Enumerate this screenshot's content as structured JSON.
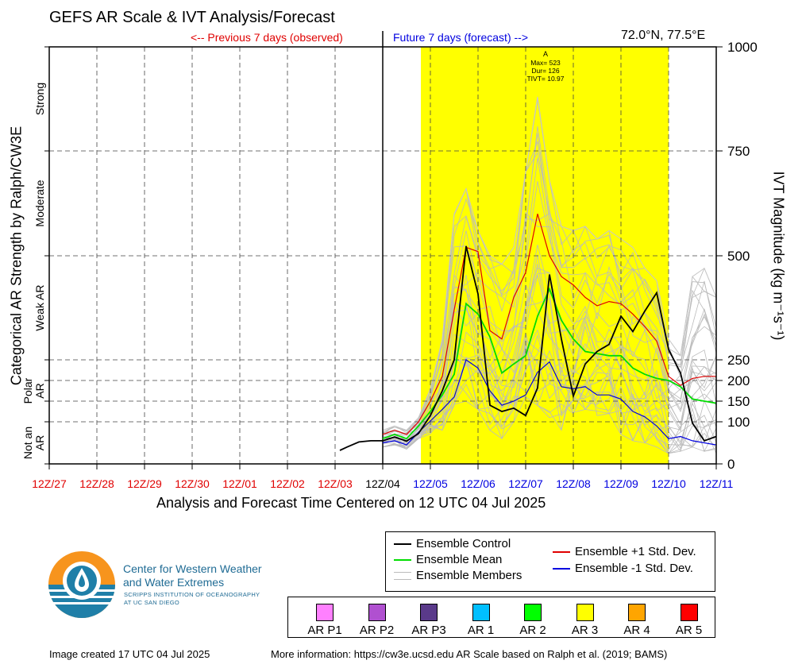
{
  "title": "GEFS AR Scale & IVT Analysis/Forecast",
  "prev_label": "<-- Previous 7 days (observed)",
  "future_label": "Future 7 days (forecast) -->",
  "coords": "72.0°N, 77.5°E",
  "xaxis_title": "Analysis and Forecast Time Centered on 12 UTC 04 Jul 2025",
  "yleft_title": "Categorical AR Strength by Ralph/CW3E",
  "yright_title": "IVT Magnitude (kg m⁻¹s⁻¹)",
  "legend": {
    "control": "Ensemble Control",
    "mean": "Ensemble Mean",
    "members": "Ensemble Members",
    "plus": "Ensemble +1 Std. Dev.",
    "minus": "Ensemble -1 Std. Dev."
  },
  "ar_scale": [
    {
      "label": "AR P1",
      "color": "#ff80ff"
    },
    {
      "label": "AR P2",
      "color": "#b050d0"
    },
    {
      "label": "AR P3",
      "color": "#5a3a8a"
    },
    {
      "label": "AR 1",
      "color": "#00bfff"
    },
    {
      "label": "AR 2",
      "color": "#00ff00"
    },
    {
      "label": "AR 3",
      "color": "#ffff00"
    },
    {
      "label": "AR 4",
      "color": "#ffa500"
    },
    {
      "label": "AR 5",
      "color": "#ff0000"
    }
  ],
  "footer_created": "Image created 17 UTC 04 Jul 2025",
  "footer_info": "More information: https://cw3e.ucsd.edu AR Scale based on Ralph et al. (2019; BAMS)",
  "org": {
    "name_line1": "Center for Western Weather",
    "name_line2": "and Water Extremes",
    "sub_line1": "SCRIPPS INSTITUTION OF OCEANOGRAPHY",
    "sub_line2": "AT UC SAN DIEGO"
  },
  "chart_data": {
    "type": "line",
    "x_ticks": [
      {
        "label": "12Z/27",
        "color": "#e00000"
      },
      {
        "label": "12Z/28",
        "color": "#e00000"
      },
      {
        "label": "12Z/29",
        "color": "#e00000"
      },
      {
        "label": "12Z/30",
        "color": "#e00000"
      },
      {
        "label": "12Z/01",
        "color": "#e00000"
      },
      {
        "label": "12Z/02",
        "color": "#e00000"
      },
      {
        "label": "12Z/03",
        "color": "#e00000"
      },
      {
        "label": "12Z/04",
        "color": "#000000"
      },
      {
        "label": "12Z/05",
        "color": "#0000e0"
      },
      {
        "label": "12Z/06",
        "color": "#0000e0"
      },
      {
        "label": "12Z/07",
        "color": "#0000e0"
      },
      {
        "label": "12Z/08",
        "color": "#0000e0"
      },
      {
        "label": "12Z/09",
        "color": "#0000e0"
      },
      {
        "label": "12Z/10",
        "color": "#0000e0"
      },
      {
        "label": "12Z/11",
        "color": "#0000e0"
      }
    ],
    "x_range_days": [
      -7,
      7
    ],
    "y_ticks": [
      "0",
      "100",
      "150",
      "200",
      "250",
      "500",
      "750",
      "1000"
    ],
    "y_levels": [
      0,
      100,
      150,
      200,
      250,
      500,
      750,
      1000
    ],
    "ylim": [
      0,
      1000
    ],
    "y_scale": "piecewise (0-250 expanded, 250-1000 compressed)",
    "categories_left": [
      {
        "label": "Not an AR",
        "lo": 0,
        "hi": 100
      },
      {
        "label": "Polar AR",
        "lo": 100,
        "hi": 250
      },
      {
        "label": "Weak AR",
        "lo": 250,
        "hi": 500
      },
      {
        "label": "Moderate",
        "lo": 500,
        "hi": 750
      },
      {
        "label": "Strong",
        "lo": 750,
        "hi": 1000
      }
    ],
    "ar_event": {
      "start_day": 0.8,
      "end_day": 6.0,
      "color": "#ffff00",
      "label": "A",
      "stats": [
        "Max= 523",
        "Dur= 126",
        "TIVT= 10.97"
      ]
    },
    "control": {
      "name": "Ensemble Control",
      "color": "#000000",
      "days": [
        -0.9,
        -0.75,
        -0.5,
        -0.25,
        0,
        0.25,
        0.5,
        0.75,
        1.0,
        1.25,
        1.5,
        1.75,
        2.0,
        2.25,
        2.5,
        2.75,
        3.0,
        3.25,
        3.5,
        3.75,
        4.0,
        4.25,
        4.5,
        4.75,
        5.0,
        5.25,
        5.5,
        5.75,
        6.0,
        6.25,
        6.5,
        6.75,
        7.0
      ],
      "values": [
        32,
        40,
        52,
        55,
        55,
        64,
        54,
        72,
        115,
        175,
        250,
        523,
        408,
        140,
        125,
        133,
        115,
        182,
        455,
        300,
        162,
        240,
        270,
        287,
        355,
        318,
        367,
        411,
        275,
        218,
        97,
        55,
        65
      ]
    },
    "mean": {
      "name": "Ensemble Mean",
      "color": "#00dd00",
      "days": [
        0,
        0.25,
        0.5,
        0.75,
        1.0,
        1.25,
        1.5,
        1.75,
        2.0,
        2.25,
        2.5,
        2.75,
        3.0,
        3.25,
        3.5,
        3.75,
        4.0,
        4.25,
        4.5,
        4.75,
        5.0,
        5.25,
        5.5,
        5.75,
        6.0,
        6.25,
        6.5,
        6.75,
        7.0
      ],
      "values": [
        60,
        70,
        60,
        90,
        125,
        165,
        215,
        385,
        360,
        305,
        218,
        240,
        260,
        355,
        420,
        345,
        300,
        270,
        265,
        260,
        260,
        230,
        215,
        205,
        200,
        185,
        155,
        150,
        145
      ]
    },
    "plus_std": {
      "name": "Ensemble +1 Std. Dev.",
      "color": "#e00000",
      "days": [
        0,
        0.25,
        0.5,
        0.75,
        1.0,
        1.25,
        1.5,
        1.75,
        2.0,
        2.25,
        2.5,
        2.75,
        3.0,
        3.25,
        3.5,
        3.75,
        4.0,
        4.25,
        4.5,
        4.75,
        5.0,
        5.25,
        5.5,
        5.75,
        6.0,
        6.25,
        6.5,
        6.75,
        7.0
      ],
      "values": [
        70,
        80,
        70,
        100,
        150,
        210,
        370,
        520,
        510,
        320,
        300,
        400,
        460,
        600,
        500,
        450,
        430,
        400,
        380,
        390,
        385,
        360,
        330,
        295,
        210,
        188,
        205,
        210,
        210
      ]
    },
    "minus_std": {
      "name": "Ensemble -1 Std. Dev.",
      "color": "#0000e0",
      "days": [
        0,
        0.25,
        0.5,
        0.75,
        1.0,
        1.25,
        1.5,
        1.75,
        2.0,
        2.25,
        2.5,
        2.75,
        3.0,
        3.25,
        3.5,
        3.75,
        4.0,
        4.25,
        4.5,
        4.75,
        5.0,
        5.25,
        5.5,
        5.75,
        6.0,
        6.25,
        6.5,
        6.75,
        7.0
      ],
      "values": [
        50,
        55,
        45,
        75,
        102,
        130,
        160,
        250,
        230,
        175,
        140,
        150,
        165,
        220,
        245,
        185,
        180,
        185,
        165,
        165,
        155,
        125,
        112,
        90,
        60,
        65,
        55,
        50,
        45
      ]
    },
    "members_envelope": {
      "name": "Ensemble Members",
      "color": "#bbbbbb",
      "days": [
        0,
        0.25,
        0.5,
        0.75,
        1.0,
        1.25,
        1.5,
        1.75,
        2.0,
        2.25,
        2.5,
        2.75,
        3.0,
        3.25,
        3.5,
        3.75,
        4.0,
        4.25,
        4.5,
        4.75,
        5.0,
        5.25,
        5.5,
        5.75,
        6.0,
        6.25,
        6.5,
        6.75,
        7.0
      ],
      "max": [
        80,
        90,
        80,
        110,
        180,
        300,
        600,
        660,
        560,
        500,
        480,
        520,
        700,
        880,
        680,
        570,
        560,
        570,
        540,
        560,
        540,
        520,
        470,
        440,
        300,
        260,
        450,
        470,
        400
      ],
      "min": [
        40,
        45,
        35,
        60,
        70,
        80,
        140,
        150,
        130,
        80,
        60,
        100,
        160,
        140,
        110,
        80,
        120,
        130,
        115,
        120,
        70,
        55,
        50,
        40,
        25,
        30,
        40,
        30,
        25
      ]
    }
  }
}
